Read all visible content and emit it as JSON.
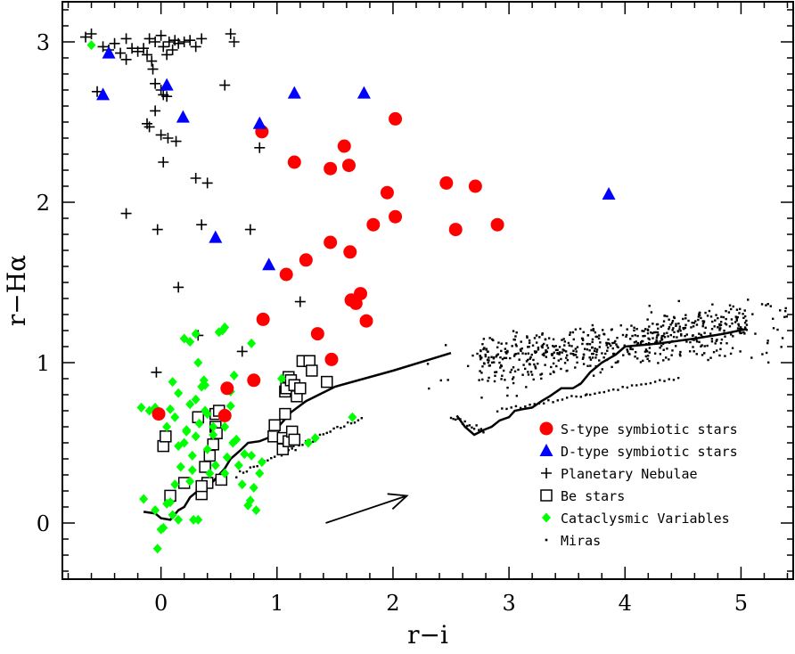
{
  "chart_data": {
    "type": "scatter",
    "xlabel": "r−i",
    "ylabel": "r−Hα",
    "xlim": [
      -0.85,
      5.45
    ],
    "ylim": [
      -0.35,
      3.25
    ],
    "x_ticks": [
      0,
      1,
      2,
      3,
      4,
      5
    ],
    "y_ticks": [
      0,
      1,
      2,
      3
    ],
    "x_tick_labels": [
      "0",
      "1",
      "2",
      "3",
      "4",
      "5"
    ],
    "y_tick_labels": [
      "0",
      "1",
      "2",
      "3"
    ],
    "legend_position": "bottom-right",
    "series": [
      {
        "name": "S-type symbiotic stars",
        "marker": "circle",
        "color": "#ff0000",
        "points": [
          [
            -0.02,
            0.68
          ],
          [
            0.57,
            0.84
          ],
          [
            0.8,
            0.89
          ],
          [
            0.55,
            0.67
          ],
          [
            0.88,
            1.27
          ],
          [
            0.87,
            2.44
          ],
          [
            1.15,
            2.25
          ],
          [
            1.25,
            1.64
          ],
          [
            1.08,
            1.55
          ],
          [
            1.46,
            2.21
          ],
          [
            1.58,
            2.35
          ],
          [
            1.62,
            2.23
          ],
          [
            1.46,
            1.75
          ],
          [
            1.63,
            1.69
          ],
          [
            1.35,
            1.18
          ],
          [
            1.47,
            1.02
          ],
          [
            1.64,
            1.39
          ],
          [
            1.68,
            1.37
          ],
          [
            1.72,
            1.43
          ],
          [
            1.77,
            1.26
          ],
          [
            1.83,
            1.86
          ],
          [
            1.95,
            2.06
          ],
          [
            2.02,
            1.91
          ],
          [
            2.02,
            2.52
          ],
          [
            2.46,
            2.12
          ],
          [
            2.71,
            2.1
          ],
          [
            2.54,
            1.83
          ],
          [
            2.9,
            1.86
          ]
        ]
      },
      {
        "name": "D-type symbiotic stars",
        "marker": "triangle",
        "color": "#0000ff",
        "points": [
          [
            -0.45,
            2.93
          ],
          [
            -0.5,
            2.67
          ],
          [
            0.05,
            2.73
          ],
          [
            0.19,
            2.53
          ],
          [
            0.47,
            1.78
          ],
          [
            0.85,
            2.49
          ],
          [
            0.93,
            1.61
          ],
          [
            1.15,
            2.68
          ],
          [
            1.75,
            2.68
          ],
          [
            3.86,
            2.05
          ]
        ]
      },
      {
        "name": "Planetary Nebulae",
        "marker": "plus",
        "color": "#000000",
        "points": [
          [
            -0.65,
            3.03
          ],
          [
            -0.6,
            3.05
          ],
          [
            -0.5,
            2.97
          ],
          [
            -0.45,
            2.95
          ],
          [
            -0.4,
            2.99
          ],
          [
            -0.35,
            2.93
          ],
          [
            -0.3,
            3.02
          ],
          [
            -0.3,
            2.89
          ],
          [
            -0.25,
            2.96
          ],
          [
            -0.2,
            2.94
          ],
          [
            -0.15,
            2.96
          ],
          [
            -0.1,
            3.02
          ],
          [
            -0.05,
            3.0
          ],
          [
            0.0,
            3.04
          ],
          [
            0.02,
            2.97
          ],
          [
            0.07,
            3.0
          ],
          [
            0.1,
            2.95
          ],
          [
            0.12,
            3.01
          ],
          [
            0.15,
            2.99
          ],
          [
            0.2,
            3.0
          ],
          [
            0.25,
            3.01
          ],
          [
            0.3,
            2.97
          ],
          [
            0.35,
            3.02
          ],
          [
            -0.12,
            2.92
          ],
          [
            -0.08,
            2.88
          ],
          [
            0.05,
            2.92
          ],
          [
            0.6,
            3.05
          ],
          [
            0.63,
            3.0
          ],
          [
            -0.07,
            2.83
          ],
          [
            -0.05,
            2.74
          ],
          [
            0.0,
            2.7
          ],
          [
            0.02,
            2.67
          ],
          [
            0.05,
            2.66
          ],
          [
            0.55,
            2.73
          ],
          [
            -0.55,
            2.69
          ],
          [
            -0.05,
            2.57
          ],
          [
            -0.12,
            2.49
          ],
          [
            -0.1,
            2.47
          ],
          [
            0.0,
            2.42
          ],
          [
            0.06,
            2.4
          ],
          [
            0.13,
            2.38
          ],
          [
            0.85,
            2.34
          ],
          [
            0.02,
            2.25
          ],
          [
            0.3,
            2.15
          ],
          [
            0.4,
            2.12
          ],
          [
            -0.3,
            1.93
          ],
          [
            -0.03,
            1.83
          ],
          [
            0.35,
            1.86
          ],
          [
            0.77,
            1.83
          ],
          [
            0.15,
            1.47
          ],
          [
            1.2,
            1.38
          ],
          [
            0.7,
            1.07
          ],
          [
            0.32,
            1.17
          ],
          [
            -0.04,
            0.94
          ]
        ]
      },
      {
        "name": "Be stars",
        "marker": "square",
        "color": "#000000",
        "points": [
          [
            0.02,
            0.48
          ],
          [
            0.04,
            0.54
          ],
          [
            0.08,
            0.17
          ],
          [
            0.2,
            0.25
          ],
          [
            0.32,
            0.66
          ],
          [
            0.35,
            0.18
          ],
          [
            0.38,
            0.35
          ],
          [
            0.4,
            0.25
          ],
          [
            0.42,
            0.42
          ],
          [
            0.45,
            0.49
          ],
          [
            0.47,
            0.6
          ],
          [
            0.47,
            0.68
          ],
          [
            0.48,
            0.56
          ],
          [
            0.5,
            0.7
          ],
          [
            0.52,
            0.27
          ],
          [
            0.35,
            0.23
          ],
          [
            0.97,
            0.54
          ],
          [
            0.98,
            0.61
          ],
          [
            1.05,
            0.46
          ],
          [
            1.05,
            0.53
          ],
          [
            1.07,
            0.68
          ],
          [
            1.07,
            0.82
          ],
          [
            1.08,
            0.84
          ],
          [
            1.1,
            0.91
          ],
          [
            1.1,
            0.51
          ],
          [
            1.12,
            0.89
          ],
          [
            1.13,
            0.57
          ],
          [
            1.15,
            0.86
          ],
          [
            1.15,
            0.52
          ],
          [
            1.17,
            0.79
          ],
          [
            1.2,
            0.84
          ],
          [
            1.22,
            1.01
          ],
          [
            1.28,
            1.01
          ],
          [
            1.3,
            0.95
          ],
          [
            1.43,
            0.88
          ]
        ]
      },
      {
        "name": "Cataclysmic Variables",
        "marker": "diamond",
        "color": "#00ff00",
        "points": [
          [
            -0.6,
            2.98
          ],
          [
            -0.17,
            0.72
          ],
          [
            -0.1,
            0.7
          ],
          [
            -0.05,
            0.72
          ],
          [
            -0.15,
            0.15
          ],
          [
            -0.05,
            0.08
          ],
          [
            -0.03,
            -0.16
          ],
          [
            0.0,
            -0.04
          ],
          [
            0.02,
            -0.03
          ],
          [
            0.05,
            0.12
          ],
          [
            0.08,
            0.13
          ],
          [
            0.1,
            0.05
          ],
          [
            0.12,
            0.24
          ],
          [
            0.15,
            0.02
          ],
          [
            0.17,
            0.35
          ],
          [
            0.2,
            0.5
          ],
          [
            0.22,
            0.57
          ],
          [
            0.25,
            0.26
          ],
          [
            0.25,
            0.74
          ],
          [
            0.27,
            0.33
          ],
          [
            0.28,
            0.02
          ],
          [
            0.3,
            0.54
          ],
          [
            0.32,
            0.02
          ],
          [
            0.33,
            0.62
          ],
          [
            0.35,
            0.85
          ],
          [
            0.37,
            0.89
          ],
          [
            0.38,
            0.7
          ],
          [
            0.4,
            0.46
          ],
          [
            0.42,
            0.31
          ],
          [
            0.45,
            0.55
          ],
          [
            0.47,
            0.36
          ],
          [
            0.5,
            1.19
          ],
          [
            0.53,
            1.2
          ],
          [
            0.55,
            1.22
          ],
          [
            0.55,
            0.31
          ],
          [
            0.57,
            0.41
          ],
          [
            0.6,
            0.73
          ],
          [
            0.62,
            0.5
          ],
          [
            0.65,
            0.52
          ],
          [
            0.67,
            0.36
          ],
          [
            0.7,
            0.24
          ],
          [
            0.72,
            0.43
          ],
          [
            0.75,
            0.11
          ],
          [
            0.77,
            0.14
          ],
          [
            0.8,
            0.22
          ],
          [
            0.82,
            0.08
          ],
          [
            0.85,
            0.31
          ],
          [
            0.87,
            0.38
          ],
          [
            0.2,
            1.15
          ],
          [
            0.25,
            1.13
          ],
          [
            0.3,
            1.18
          ],
          [
            0.1,
            0.88
          ],
          [
            0.15,
            0.81
          ],
          [
            0.08,
            0.71
          ],
          [
            0.05,
            0.6
          ],
          [
            0.15,
            0.48
          ],
          [
            0.27,
            0.42
          ],
          [
            0.22,
            0.58
          ],
          [
            0.12,
            0.66
          ],
          [
            0.32,
            1.0
          ],
          [
            0.38,
            0.86
          ],
          [
            0.45,
            0.6
          ],
          [
            0.78,
            1.12
          ],
          [
            0.78,
            0.42
          ],
          [
            1.04,
            0.9
          ],
          [
            0.63,
            0.92
          ],
          [
            1.27,
            0.5
          ],
          [
            1.33,
            0.53
          ],
          [
            1.65,
            0.66
          ],
          [
            0.3,
            0.77
          ],
          [
            0.55,
            0.6
          ],
          [
            0.4,
            0.68
          ],
          [
            0.6,
            0.82
          ]
        ]
      },
      {
        "name": "Miras",
        "marker": "dot",
        "color": "#000000",
        "points": []
      }
    ],
    "lines": [
      {
        "name": "",
        "points": [
          [
            -0.15,
            0.07
          ],
          [
            -0.05,
            0.06
          ],
          [
            0.0,
            0.03
          ],
          [
            0.08,
            0.02
          ],
          [
            0.15,
            0.08
          ],
          [
            0.2,
            0.1
          ],
          [
            0.25,
            0.16
          ],
          [
            0.35,
            0.22
          ],
          [
            0.45,
            0.26
          ],
          [
            0.55,
            0.34
          ],
          [
            0.6,
            0.4
          ],
          [
            0.68,
            0.45
          ],
          [
            0.75,
            0.5
          ],
          [
            0.85,
            0.51
          ],
          [
            0.92,
            0.53
          ],
          [
            1.0,
            0.59
          ],
          [
            1.12,
            0.69
          ],
          [
            1.25,
            0.76
          ],
          [
            1.5,
            0.85
          ],
          [
            2.0,
            0.95
          ],
          [
            2.5,
            1.06
          ]
        ]
      },
      {
        "name": "",
        "points": [
          [
            2.55,
            0.67
          ],
          [
            2.62,
            0.6
          ],
          [
            2.7,
            0.55
          ],
          [
            2.78,
            0.58
          ],
          [
            2.85,
            0.6
          ],
          [
            2.92,
            0.64
          ],
          [
            3.0,
            0.66
          ],
          [
            3.05,
            0.7
          ],
          [
            3.12,
            0.71
          ],
          [
            3.2,
            0.72
          ],
          [
            3.28,
            0.76
          ],
          [
            3.35,
            0.79
          ],
          [
            3.45,
            0.84
          ],
          [
            3.55,
            0.84
          ],
          [
            3.62,
            0.87
          ],
          [
            3.7,
            0.94
          ],
          [
            3.8,
            1.0
          ],
          [
            3.92,
            1.05
          ],
          [
            4.0,
            1.1
          ],
          [
            4.3,
            1.12
          ],
          [
            4.6,
            1.15
          ],
          [
            4.85,
            1.18
          ],
          [
            5.05,
            1.21
          ]
        ]
      }
    ],
    "annotations": [
      {
        "type": "arrow",
        "from": [
          1.42,
          0.0
        ],
        "to": [
          2.12,
          0.17
        ]
      }
    ]
  }
}
